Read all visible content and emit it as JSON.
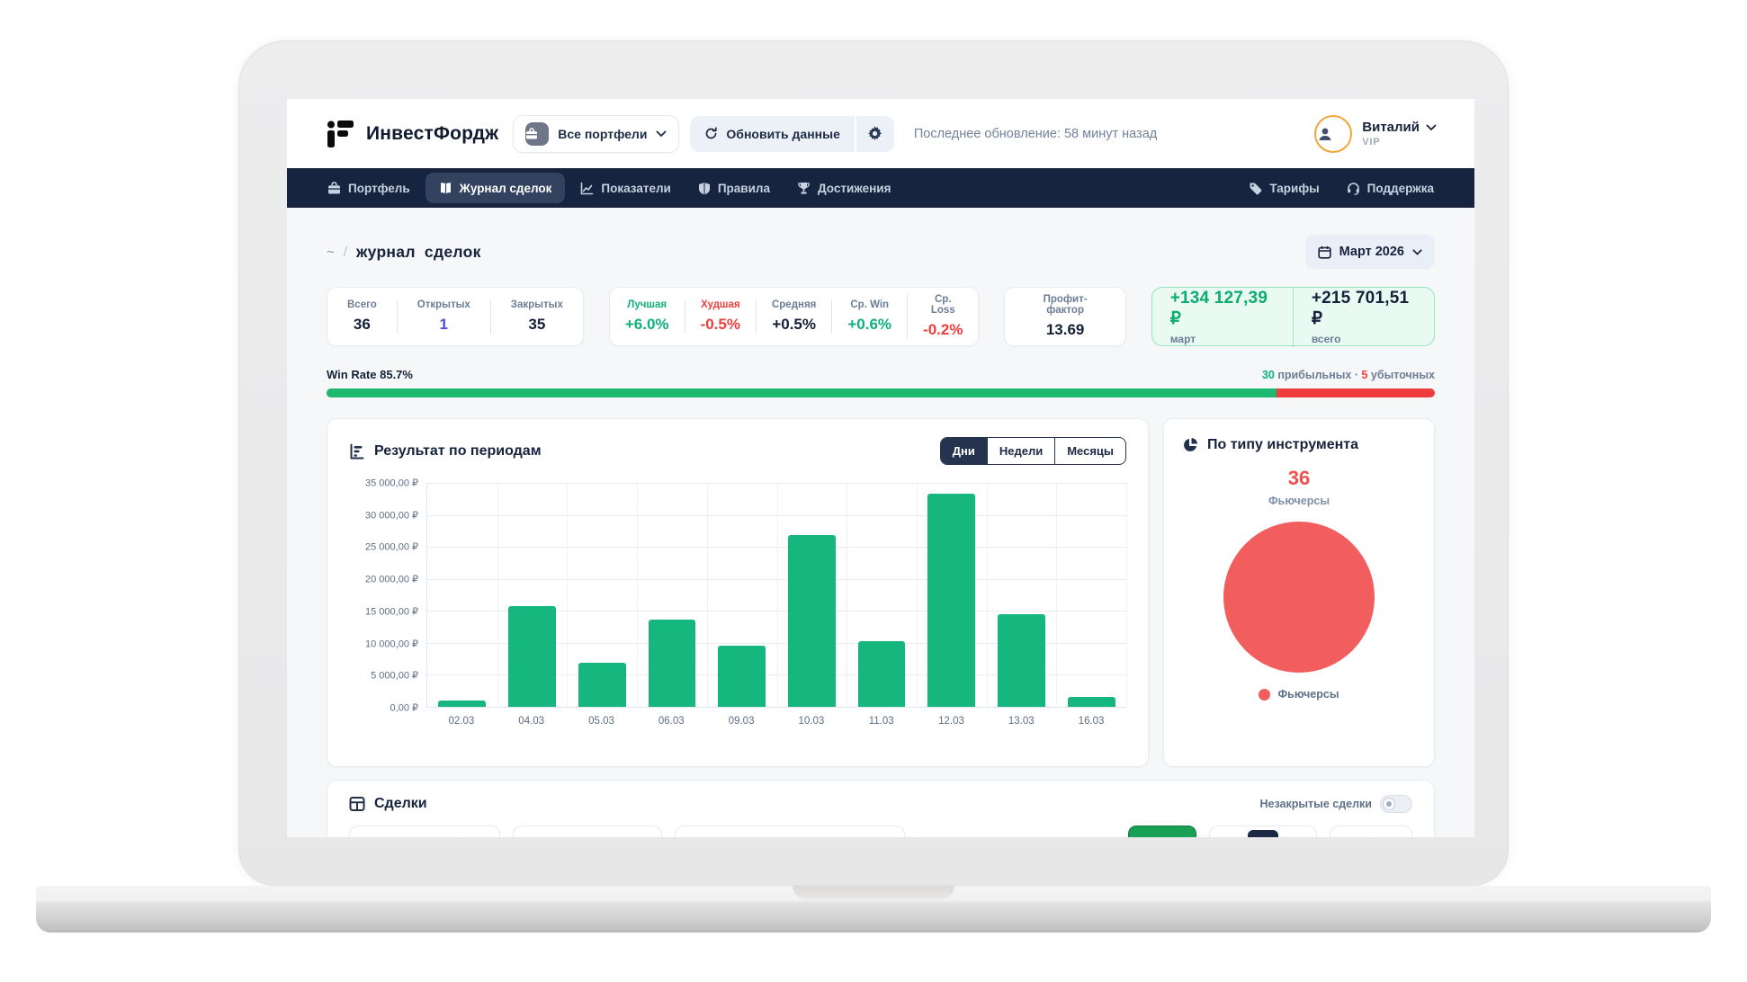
{
  "header": {
    "app_name": "ИнвестФордж",
    "portfolio_selector": "Все портфели",
    "refresh_button": "Обновить данные",
    "last_update": "Последнее обновление: 58 минут назад",
    "user": {
      "name": "Виталий",
      "badge": "VIP"
    }
  },
  "nav": {
    "items": [
      {
        "label": "Портфель",
        "icon": "briefcase-icon"
      },
      {
        "label": "Журнал сделок",
        "icon": "journal-icon",
        "active": true
      },
      {
        "label": "Показатели",
        "icon": "chart-line-icon"
      },
      {
        "label": "Правила",
        "icon": "shield-icon"
      },
      {
        "label": "Достижения",
        "icon": "trophy-icon"
      }
    ],
    "right_items": [
      {
        "label": "Тарифы",
        "icon": "tag-icon"
      },
      {
        "label": "Поддержка",
        "icon": "headset-icon"
      }
    ]
  },
  "breadcrumb": {
    "root": "~",
    "separator": "/",
    "current": "журнал сделок"
  },
  "period_picker": {
    "label": "Март 2026"
  },
  "stats": {
    "counts": {
      "cells": [
        {
          "label": "Всего",
          "value": "36"
        },
        {
          "label": "Открытых",
          "value": "1"
        },
        {
          "label": "Закрытых",
          "value": "35"
        }
      ]
    },
    "percents": {
      "cells": [
        {
          "label": "Лучшая",
          "value": "+6.0%"
        },
        {
          "label": "Худшая",
          "value": "-0.5%"
        },
        {
          "label": "Средняя",
          "value": "+0.5%"
        },
        {
          "label": "Ср. Win",
          "value": "+0.6%"
        },
        {
          "label": "Ср. Loss",
          "value": "-0.2%"
        }
      ]
    },
    "profit_factor": {
      "label": "Профит-фактор",
      "value": "13.69"
    },
    "pnl": {
      "month": {
        "value": "+134 127,39 ₽",
        "label": "март"
      },
      "total": {
        "value": "+215 701,51 ₽",
        "label": "всего"
      }
    }
  },
  "win_rate": {
    "label": "Win Rate 85.7%",
    "percent": 85.7,
    "wins": "30",
    "wins_label": " прибыльных ",
    "separator": "· ",
    "losses": "5",
    "losses_label": " убыточных"
  },
  "period_chart": {
    "title": "Результат по периодам",
    "tabs": [
      "Дни",
      "Недели",
      "Месяцы"
    ],
    "active_tab": "Дни"
  },
  "instrument_panel": {
    "title": "По типу инструмента",
    "count": "36",
    "count_label": "Фьючерсы",
    "legend_label": "Фьючерсы"
  },
  "deals": {
    "title": "Сделки",
    "toggle_label": "Незакрытые сделки",
    "toggle_state": "off"
  },
  "chart_data": [
    {
      "type": "bar",
      "title": "Результат по периодам",
      "categories": [
        "02.03",
        "04.03",
        "05.03",
        "06.03",
        "09.03",
        "10.03",
        "11.03",
        "12.03",
        "13.03",
        "16.03"
      ],
      "values": [
        1000,
        15800,
        6900,
        13600,
        9600,
        26800,
        10200,
        33300,
        14500,
        1600
      ],
      "xlabel": "",
      "ylabel": "",
      "ylim": [
        0,
        35000
      ],
      "ytick_labels_top_to_bottom": [
        "35 000,00 ₽",
        "30 000,00 ₽",
        "25 000,00 ₽",
        "20 000,00 ₽",
        "15 000,00 ₽",
        "10 000,00 ₽",
        "5 000,00 ₽",
        "0,00 ₽"
      ],
      "grid": true,
      "bar_color": "#15b77e",
      "legend_position": "none"
    },
    {
      "type": "pie",
      "title": "По типу инструмента",
      "slices": [
        {
          "label": "Фьючерсы",
          "value": 36,
          "color": "#f25e5e"
        }
      ],
      "legend_position": "bottom"
    }
  ],
  "colors": {
    "navy": "#172440",
    "green": "#15b77e",
    "red": "#f23d3d",
    "blue": "#4b4be0",
    "gold": "#f3a53a",
    "page_bg": "#f6f7f9"
  },
  "icons": {
    "logo": "iF-mark",
    "portfolio": "briefcase",
    "refresh": "circular-arrows",
    "settings": "gear",
    "user": "person",
    "calendar": "calendar",
    "period_chart": "bar-chart",
    "instruments": "pie-chart",
    "deals": "table",
    "chevron": "chevron-down"
  }
}
